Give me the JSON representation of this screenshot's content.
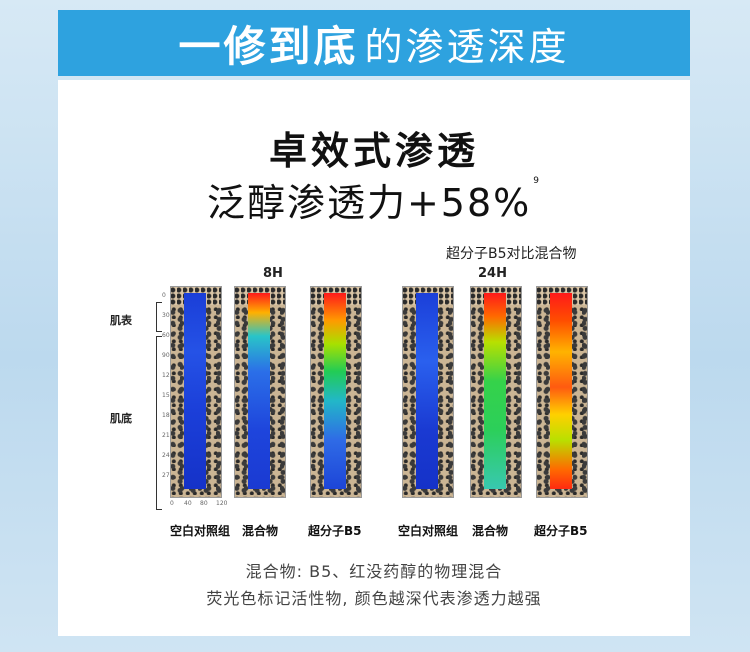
{
  "banner": {
    "bold": "一修到底",
    "light": "的渗透深度"
  },
  "headline": "卓效式渗透",
  "subline": {
    "text": "泛醇渗透力+58%",
    "sup": "9"
  },
  "comparison_label": "超分子B5对比混合物",
  "time_labels": [
    "8H",
    "24H"
  ],
  "side_labels": {
    "surface": "肌表",
    "base": "肌底"
  },
  "captions": [
    "空白对照组",
    "混合物",
    "超分子B5",
    "空白对照组",
    "混合物",
    "超分子B5"
  ],
  "axis_ticks_y": [
    "0",
    "30",
    "60",
    "90",
    "120",
    "150",
    "180",
    "210",
    "240",
    "270"
  ],
  "axis_ticks_x": [
    "0",
    "40",
    "80",
    "120"
  ],
  "footnotes": [
    "混合物: B5、红没药醇的物理混合",
    "荧光色标记活性物, 颜色越深代表渗透力越强"
  ],
  "colors": {
    "banner": "#2ea2df",
    "background": "#cfe4f3"
  }
}
